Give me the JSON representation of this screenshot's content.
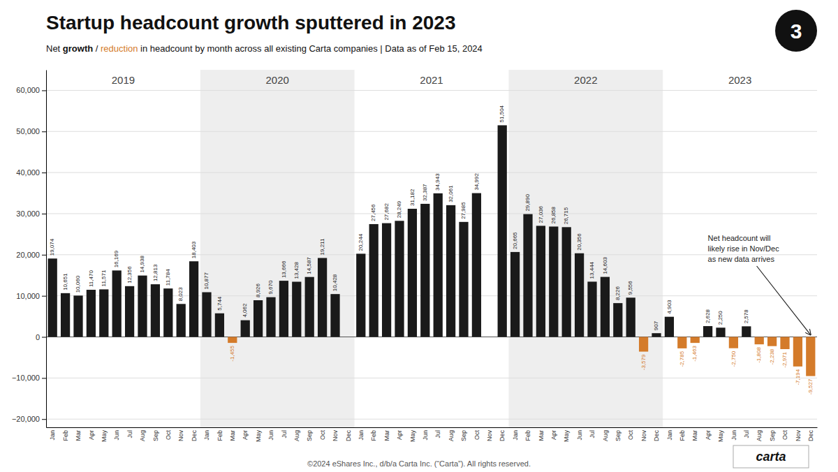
{
  "chart_data": {
    "type": "bar",
    "title": "Startup headcount growth sputtered in 2023",
    "subtitle": [
      "Net ",
      "growth",
      " / ",
      "reduction",
      " in headcount by month across all existing Carta companies | Data as of Feb 15, 2024"
    ],
    "footer": "©2024 eShares Inc., d/b/a Carta Inc. (“Carta”). All rights reserved.",
    "logo": "carta",
    "badge": "3",
    "annotation": "Net headcount will\nlikely rise in Nov/Dec\nas new data arrives",
    "category_groups": [
      "2019",
      "2020",
      "2021",
      "2022",
      "2023"
    ],
    "categories": [
      "Jan",
      "Feb",
      "Mar",
      "Apr",
      "May",
      "Jun",
      "Jul",
      "Aug",
      "Sep",
      "Oct",
      "Nov",
      "Dec",
      "Jan",
      "Feb",
      "Mar",
      "Apr",
      "May",
      "Jun",
      "Jul",
      "Aug",
      "Sep",
      "Oct",
      "Nov",
      "Dec",
      "Jan",
      "Feb",
      "Mar",
      "Apr",
      "May",
      "Jun",
      "Jul",
      "Aug",
      "Sep",
      "Oct",
      "Nov",
      "Dec",
      "Jan",
      "Feb",
      "Mar",
      "Apr",
      "May",
      "Jun",
      "Jul",
      "Aug",
      "Sep",
      "Oct",
      "Nov",
      "Dec",
      "Jan",
      "Feb",
      "Mar",
      "Apr",
      "May",
      "Jun",
      "Jul",
      "Aug",
      "Sep",
      "Oct",
      "Nov",
      "Dec"
    ],
    "values": [
      19074,
      10651,
      10060,
      11470,
      11571,
      16169,
      12356,
      14938,
      12813,
      11784,
      8023,
      18403,
      10877,
      5744,
      -1455,
      4062,
      8926,
      9670,
      13666,
      13428,
      14587,
      19211,
      10428,
      0,
      20244,
      27456,
      27682,
      28249,
      31182,
      32387,
      34943,
      32061,
      27985,
      34992,
      0,
      51504,
      20665,
      29890,
      27036,
      26858,
      26715,
      20356,
      13444,
      14603,
      8226,
      9556,
      -3579,
      907,
      4903,
      -2785,
      -1463,
      2628,
      2250,
      -2750,
      2578,
      -1808,
      -2238,
      -2971,
      -7194,
      -9527
    ],
    "value_labels": [
      "19,074",
      "10,651",
      "10,060",
      "11,470",
      "11,571",
      "16,169",
      "12,356",
      "14,938",
      "12,813",
      "11,784",
      "8,023",
      "18,403",
      "10,877",
      "5,744",
      "-1,455",
      "4,062",
      "8,926",
      "9,670",
      "13,666",
      "13,428",
      "14,587",
      "19,211",
      "10,428",
      null,
      "20,244",
      "27,456",
      "27,682",
      "28,249",
      "31,182",
      "32,387",
      "34,943",
      "32,061",
      "27,985",
      "34,992",
      null,
      "51,504",
      "20,665",
      "29,890",
      "27,036",
      "26,858",
      "26,715",
      "20,356",
      "13,444",
      "14,603",
      "8,226",
      "9,556",
      "-3,579",
      "907",
      "4,903",
      "-2,785",
      "-1,463",
      "2,628",
      "2,250",
      "-2,750",
      "2,578",
      "-1,808",
      "-2,238",
      "-2,971",
      "-7,194",
      "-9,527"
    ],
    "colors": [
      "#1a1a1a",
      "#1a1a1a",
      "#1a1a1a",
      "#1a1a1a",
      "#1a1a1a",
      "#1a1a1a",
      "#1a1a1a",
      "#1a1a1a",
      "#1a1a1a",
      "#1a1a1a",
      "#1a1a1a",
      "#1a1a1a",
      "#1a1a1a",
      "#1a1a1a",
      "#D47B2A",
      "#1a1a1a",
      "#1a1a1a",
      "#1a1a1a",
      "#1a1a1a",
      "#1a1a1a",
      "#1a1a1a",
      "#1a1a1a",
      "#1a1a1a",
      "#1a1a1a",
      "#1a1a1a",
      "#1a1a1a",
      "#1a1a1a",
      "#1a1a1a",
      "#1a1a1a",
      "#1a1a1a",
      "#1a1a1a",
      "#1a1a1a",
      "#1a1a1a",
      "#1a1a1a",
      "#1a1a1a",
      "#1a1a1a",
      "#1a1a1a",
      "#1a1a1a",
      "#1a1a1a",
      "#1a1a1a",
      "#1a1a1a",
      "#1a1a1a",
      "#1a1a1a",
      "#1a1a1a",
      "#1a1a1a",
      "#1a1a1a",
      "#D47B2A",
      "#1a1a1a",
      "#1a1a1a",
      "#D47B2A",
      "#D47B2A",
      "#1a1a1a",
      "#1a1a1a",
      "#D47B2A",
      "#1a1a1a",
      "#D47B2A",
      "#D47B2A",
      "#D47B2A",
      "#D47B2A",
      "#D47B2A"
    ],
    "ylim": [
      -22000,
      65000
    ],
    "yticks": [
      {
        "value": -20000,
        "label": "−20,000"
      },
      {
        "value": -10000,
        "label": "−10,000"
      },
      0,
      {
        "value": 10000,
        "label": "10,000"
      },
      {
        "value": 20000,
        "label": "20,000"
      },
      {
        "value": 30000,
        "label": "30,000"
      },
      {
        "value": 40000,
        "label": "40,000"
      },
      {
        "value": 50000,
        "label": "50,000"
      },
      {
        "value": 60000,
        "label": "60,000"
      }
    ],
    "grid": true,
    "data_labels": true
  }
}
